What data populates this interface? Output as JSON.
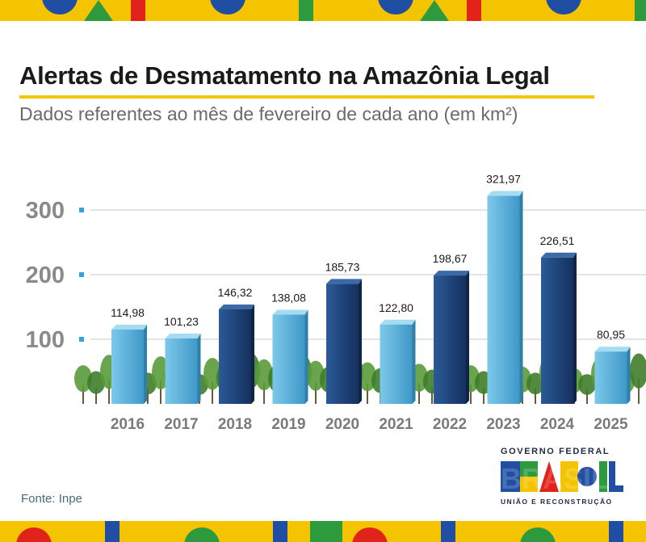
{
  "title": "Alertas de Desmatamento na Amazônia Legal",
  "subtitle": "Dados referentes ao mês de fevereiro de cada ano (em km²)",
  "source": "Fonte: Inpe",
  "logo": {
    "top_text": "GOVERNO FEDERAL",
    "word": "BRASIL",
    "bottom_text": "UNIÃO E RECONSTRUÇÃO"
  },
  "colors": {
    "yellow": "#f5c400",
    "blue": "#1f4ea3",
    "green": "#2e9a3e",
    "red": "#e2231a",
    "bar_light": "#5ab6e0",
    "bar_dark": "#1c3f78",
    "tree": "#3f7d2a"
  },
  "chart_data": {
    "type": "bar",
    "title": "Alertas de Desmatamento na Amazônia Legal",
    "subtitle": "Dados referentes ao mês de fevereiro de cada ano (em km²)",
    "xlabel": "",
    "ylabel": "",
    "categories": [
      "2016",
      "2017",
      "2018",
      "2019",
      "2020",
      "2021",
      "2022",
      "2023",
      "2024",
      "2025"
    ],
    "values": [
      114.98,
      101.23,
      146.32,
      138.08,
      185.73,
      122.8,
      198.67,
      321.97,
      226.51,
      80.95
    ],
    "value_labels": [
      "114,98",
      "101,23",
      "146,32",
      "138,08",
      "185,73",
      "122,80",
      "198,67",
      "321,97",
      "226,51",
      "80,95"
    ],
    "yticks": [
      100,
      200,
      300
    ],
    "ytick_labels": [
      "100",
      "200",
      "300"
    ],
    "ylim": [
      0,
      340
    ],
    "grid": true,
    "bar_shades": [
      "light",
      "light",
      "dark",
      "light",
      "dark",
      "light",
      "dark",
      "light",
      "dark",
      "light"
    ]
  }
}
